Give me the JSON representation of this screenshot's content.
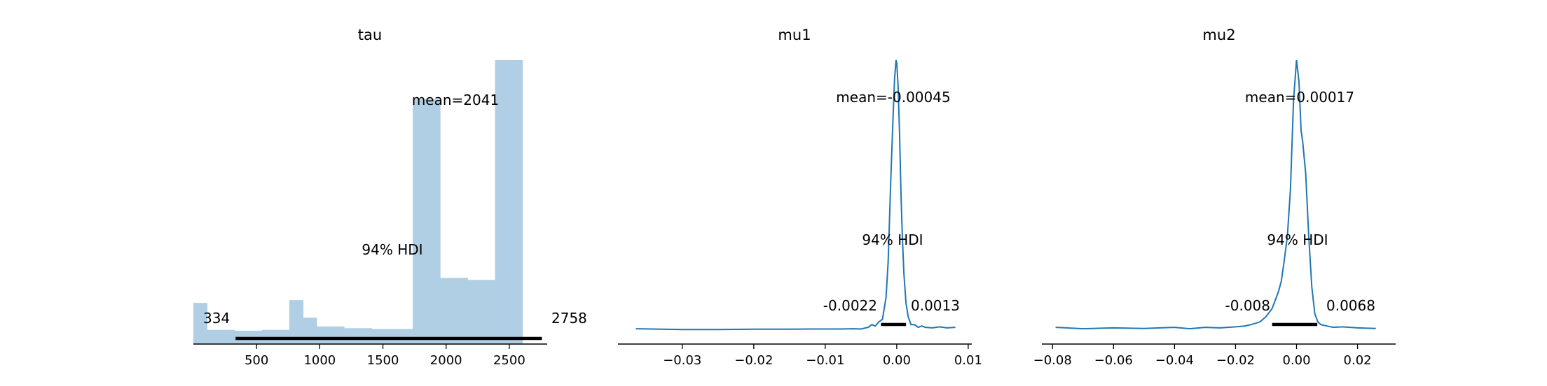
{
  "chart_data": [
    {
      "type": "bar",
      "title": "tau",
      "bar_color": "#b0cfe5",
      "bins": [
        {
          "x0": 0,
          "x1": 108,
          "count": 0.145
        },
        {
          "x0": 108,
          "x1": 217,
          "count": 0.05
        },
        {
          "x0": 217,
          "x1": 325,
          "count": 0.05
        },
        {
          "x0": 325,
          "x1": 434,
          "count": 0.047
        },
        {
          "x0": 434,
          "x1": 542,
          "count": 0.047
        },
        {
          "x0": 542,
          "x1": 651,
          "count": 0.05
        },
        {
          "x0": 651,
          "x1": 759,
          "count": 0.05
        },
        {
          "x0": 759,
          "x1": 868,
          "count": 0.155
        },
        {
          "x0": 868,
          "x1": 976,
          "count": 0.093
        },
        {
          "x0": 976,
          "x1": 1085,
          "count": 0.062
        },
        {
          "x0": 1085,
          "x1": 1193,
          "count": 0.062
        },
        {
          "x0": 1193,
          "x1": 1302,
          "count": 0.056
        },
        {
          "x0": 1302,
          "x1": 1410,
          "count": 0.056
        },
        {
          "x0": 1410,
          "x1": 1519,
          "count": 0.053
        },
        {
          "x0": 1519,
          "x1": 1627,
          "count": 0.053
        },
        {
          "x0": 1627,
          "x1": 1736,
          "count": 0.053
        },
        {
          "x0": 1736,
          "x1": 1844,
          "count": 0.862
        },
        {
          "x0": 1844,
          "x1": 1953,
          "count": 0.862
        },
        {
          "x0": 1953,
          "x1": 2061,
          "count": 0.233
        },
        {
          "x0": 2061,
          "x1": 2170,
          "count": 0.233
        },
        {
          "x0": 2170,
          "x1": 2278,
          "count": 0.226
        },
        {
          "x0": 2278,
          "x1": 2387,
          "count": 0.226
        },
        {
          "x0": 2387,
          "x1": 2495,
          "count": 1.0
        },
        {
          "x0": 2495,
          "x1": 2604,
          "count": 1.0
        }
      ],
      "xlim": [
        0,
        2800
      ],
      "ylim": [
        0,
        1
      ],
      "xticks": [
        500,
        1000,
        1500,
        2000,
        2500
      ],
      "xtick_labels": [
        "500",
        "1000",
        "1500",
        "2000",
        "2500"
      ],
      "hdi": {
        "low": 334,
        "high": 2758,
        "low_label": "334",
        "high_label": "2758",
        "label": "94% HDI"
      },
      "mean_label": "mean=2041",
      "left_spine": false
    },
    {
      "type": "line",
      "title": "mu1",
      "line_color": "#1f77b4",
      "x": [
        -0.0365,
        -0.03,
        -0.025,
        -0.02,
        -0.015,
        -0.012,
        -0.01,
        -0.008,
        -0.006,
        -0.005,
        -0.004,
        -0.0035,
        -0.003,
        -0.0025,
        -0.002,
        -0.0015,
        -0.0012,
        -0.001,
        -0.0008,
        -0.0005,
        -0.0003,
        -0.0001,
        0.0,
        0.0002,
        0.0004,
        0.0006,
        0.0008,
        0.001,
        0.0013,
        0.0016,
        0.002,
        0.0025,
        0.003,
        0.0035,
        0.004,
        0.005,
        0.006,
        0.007,
        0.0082
      ],
      "y": [
        0.005,
        0.002,
        0.002,
        0.003,
        0.003,
        0.004,
        0.004,
        0.004,
        0.005,
        0.004,
        0.01,
        0.02,
        0.015,
        0.03,
        0.04,
        0.12,
        0.25,
        0.42,
        0.58,
        0.8,
        0.93,
        1.0,
        0.99,
        0.9,
        0.72,
        0.5,
        0.34,
        0.21,
        0.1,
        0.05,
        0.02,
        0.02,
        0.01,
        0.015,
        0.01,
        0.008,
        0.012,
        0.008,
        0.01
      ],
      "xlim": [
        -0.039,
        0.0105
      ],
      "ylim": [
        0,
        1
      ],
      "xticks": [
        -0.03,
        -0.02,
        -0.01,
        0.0,
        0.01
      ],
      "xtick_labels": [
        "−0.03",
        "−0.02",
        "−0.01",
        "0.00",
        "0.01"
      ],
      "hdi": {
        "low": -0.0022,
        "high": 0.0013,
        "low_label": "-0.0022",
        "high_label": "0.0013",
        "label": "94% HDI"
      },
      "mean_label": "mean=-0.00045",
      "left_spine": false
    },
    {
      "type": "line",
      "title": "mu2",
      "line_color": "#1f77b4",
      "x": [
        -0.079,
        -0.07,
        -0.06,
        -0.05,
        -0.04,
        -0.035,
        -0.03,
        -0.025,
        -0.02,
        -0.017,
        -0.015,
        -0.012,
        -0.01,
        -0.008,
        -0.006,
        -0.005,
        -0.004,
        -0.003,
        -0.002,
        -0.001,
        0.0,
        0.0008,
        0.0015,
        0.002,
        0.003,
        0.004,
        0.005,
        0.006,
        0.007,
        0.008,
        0.01,
        0.012,
        0.015,
        0.02,
        0.026
      ],
      "y": [
        0.01,
        0.005,
        0.008,
        0.006,
        0.01,
        0.005,
        0.01,
        0.008,
        0.012,
        0.015,
        0.02,
        0.03,
        0.05,
        0.08,
        0.14,
        0.18,
        0.26,
        0.35,
        0.52,
        0.85,
        1.0,
        0.92,
        0.74,
        0.7,
        0.58,
        0.35,
        0.16,
        0.06,
        0.03,
        0.02,
        0.015,
        0.01,
        0.012,
        0.008,
        0.006
      ],
      "xlim": [
        -0.0835,
        0.0325
      ],
      "ylim": [
        0,
        1
      ],
      "xticks": [
        -0.08,
        -0.06,
        -0.04,
        -0.02,
        0.0,
        0.02
      ],
      "xtick_labels": [
        "−0.08",
        "−0.06",
        "−0.04",
        "−0.02",
        "0.00",
        "0.02"
      ],
      "hdi": {
        "low": -0.008,
        "high": 0.0068,
        "low_label": "-0.008",
        "high_label": "0.0068",
        "label": "94% HDI"
      },
      "mean_label": "mean=0.00017",
      "left_spine": false
    }
  ]
}
